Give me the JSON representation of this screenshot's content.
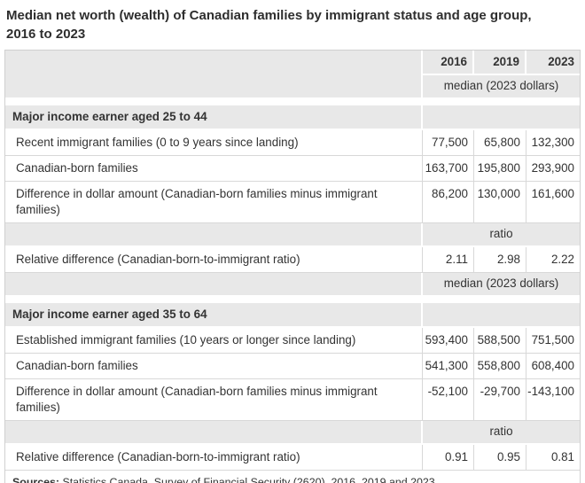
{
  "title": {
    "line1": "Median net worth (wealth) of Canadian families by immigrant status and age group,",
    "line2": "2016 to 2023"
  },
  "table": {
    "years": [
      "2016",
      "2019",
      "2023"
    ],
    "unit_median": "median (2023 dollars)",
    "unit_ratio": "ratio",
    "sections": [
      {
        "header": "Major income earner aged 25 to 44",
        "rows": [
          {
            "label": "Recent immigrant families (0 to 9 years since landing)",
            "values": [
              "77,500",
              "65,800",
              "132,300"
            ]
          },
          {
            "label": "Canadian-born families",
            "values": [
              "163,700",
              "195,800",
              "293,900"
            ]
          },
          {
            "label": "Difference in dollar amount (Canadian-born families minus immigrant families)",
            "values": [
              "86,200",
              "130,000",
              "161,600"
            ]
          }
        ],
        "ratio_row": {
          "label": "Relative difference (Canadian-born-to-immigrant ratio)",
          "values": [
            "2.11",
            "2.98",
            "2.22"
          ]
        }
      },
      {
        "header": "Major income earner aged 35 to 64",
        "rows": [
          {
            "label": "Established immigrant families (10 years or longer since landing)",
            "values": [
              "593,400",
              "588,500",
              "751,500"
            ]
          },
          {
            "label": "Canadian-born families",
            "values": [
              "541,300",
              "558,800",
              "608,400"
            ]
          },
          {
            "label": "Difference in dollar amount (Canadian-born families minus immigrant families)",
            "values": [
              "-52,100",
              "-29,700",
              "-143,100"
            ]
          }
        ],
        "ratio_row": {
          "label": "Relative difference (Canadian-born-to-immigrant ratio)",
          "values": [
            "0.91",
            "0.95",
            "0.81"
          ]
        }
      }
    ],
    "sources_label": "Sources:",
    "sources_text": " Statistics Canada, Survey of Financial Security (2620), 2016, 2019 and 2023."
  },
  "colors": {
    "header_bg": "#e8e8e8",
    "cell_border": "#d8d8d8",
    "outer_border": "#d0d0d0",
    "text": "#333333"
  },
  "chart_data": {
    "type": "table",
    "title": "Median net worth (wealth) of Canadian families by immigrant status and age group, 2016 to 2023",
    "columns": [
      "2016",
      "2019",
      "2023"
    ],
    "units": [
      "median (2023 dollars)",
      "ratio"
    ],
    "sections": [
      {
        "group": "Major income earner aged 25 to 44",
        "rows": [
          {
            "label": "Recent immigrant families (0 to 9 years since landing)",
            "unit": "median (2023 dollars)",
            "values": [
              77500,
              65800,
              132300
            ]
          },
          {
            "label": "Canadian-born families",
            "unit": "median (2023 dollars)",
            "values": [
              163700,
              195800,
              293900
            ]
          },
          {
            "label": "Difference in dollar amount (Canadian-born families minus immigrant families)",
            "unit": "median (2023 dollars)",
            "values": [
              86200,
              130000,
              161600
            ]
          },
          {
            "label": "Relative difference (Canadian-born-to-immigrant ratio)",
            "unit": "ratio",
            "values": [
              2.11,
              2.98,
              2.22
            ]
          }
        ]
      },
      {
        "group": "Major income earner aged 35 to 64",
        "rows": [
          {
            "label": "Established immigrant families (10 years or longer since landing)",
            "unit": "median (2023 dollars)",
            "values": [
              593400,
              588500,
              751500
            ]
          },
          {
            "label": "Canadian-born families",
            "unit": "median (2023 dollars)",
            "values": [
              541300,
              558800,
              608400
            ]
          },
          {
            "label": "Difference in dollar amount (Canadian-born families minus immigrant families)",
            "unit": "median (2023 dollars)",
            "values": [
              -52100,
              -29700,
              -143100
            ]
          },
          {
            "label": "Relative difference (Canadian-born-to-immigrant ratio)",
            "unit": "ratio",
            "values": [
              0.91,
              0.95,
              0.81
            ]
          }
        ]
      }
    ],
    "source": "Statistics Canada, Survey of Financial Security (2620), 2016, 2019 and 2023."
  }
}
